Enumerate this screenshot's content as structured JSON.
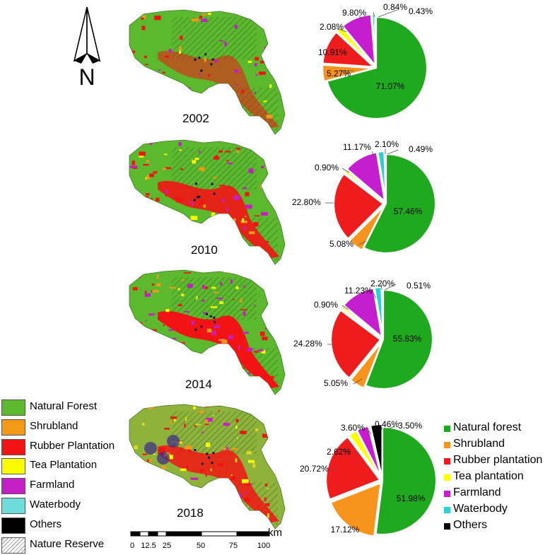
{
  "north_arrow": {
    "letter": "N"
  },
  "years": [
    "2002",
    "2010",
    "2014",
    "2018"
  ],
  "legend_left": [
    {
      "label": "Natural Forest",
      "color": "#5cb82d"
    },
    {
      "label": "Shrubland",
      "color": "#f29a18"
    },
    {
      "label": "Rubber Plantation",
      "color": "#f21414"
    },
    {
      "label": "Tea Plantation",
      "color": "#fafa00"
    },
    {
      "label": "Farmland",
      "color": "#c61ec6"
    },
    {
      "label": "Waterbody",
      "color": "#6fdcdc"
    },
    {
      "label": "Others",
      "color": "#000000"
    },
    {
      "label": "Nature Reserve",
      "color": "hatch"
    }
  ],
  "legend_right": [
    {
      "label": "Natural forest",
      "color": "#1fa91f"
    },
    {
      "label": "Shrubland",
      "color": "#f7941d"
    },
    {
      "label": "Rubber plantation",
      "color": "#ee1c1c"
    },
    {
      "label": "Tea plantation",
      "color": "#ffff00"
    },
    {
      "label": "Farmland",
      "color": "#c51ecf"
    },
    {
      "label": "Waterbody",
      "color": "#2dd0d0"
    },
    {
      "label": "Others",
      "color": "#000000"
    }
  ],
  "scale_bar": {
    "unit": "km",
    "ticks": [
      "0",
      "12.5",
      "25",
      "50",
      "75",
      "100"
    ]
  },
  "chart_data": [
    {
      "type": "pie",
      "title": "2002",
      "categories": [
        "Natural forest",
        "Shrubland",
        "Rubber plantation",
        "Tea plantation",
        "Farmland",
        "Waterbody",
        "Others"
      ],
      "values": [
        71.07,
        5.27,
        10.91,
        2.08,
        9.8,
        0.84,
        0.43
      ],
      "labels": [
        "71.07%",
        "5.27%",
        "10.91%",
        "2.08%",
        "9.80%",
        "0.84%",
        "0.43%"
      ]
    },
    {
      "type": "pie",
      "title": "2010",
      "categories": [
        "Natural forest",
        "Shrubland",
        "Rubber plantation",
        "Tea plantation",
        "Farmland",
        "Waterbody",
        "Others"
      ],
      "values": [
        57.46,
        5.08,
        22.8,
        0.9,
        11.17,
        2.1,
        0.49
      ],
      "labels": [
        "57.46%",
        "5.08%",
        "22.80%",
        "0.90%",
        "11.17%",
        "2.10%",
        "0.49%"
      ]
    },
    {
      "type": "pie",
      "title": "2014",
      "categories": [
        "Natural forest",
        "Shrubland",
        "Rubber plantation",
        "Tea plantation",
        "Farmland",
        "Waterbody",
        "Others"
      ],
      "values": [
        55.83,
        5.05,
        24.28,
        0.9,
        11.23,
        2.2,
        0.51
      ],
      "labels": [
        "55.83%",
        "5.05%",
        "24.28%",
        "0.90%",
        "11.23%",
        "2.20%",
        "0.51%"
      ]
    },
    {
      "type": "pie",
      "title": "2018",
      "categories": [
        "Natural forest",
        "Shrubland",
        "Rubber plantation",
        "Tea plantation",
        "Farmland",
        "Waterbody",
        "Others"
      ],
      "values": [
        51.98,
        17.12,
        20.72,
        2.62,
        3.6,
        0.46,
        3.5
      ],
      "labels": [
        "51.98%",
        "17.12%",
        "20.72%",
        "2.62%",
        "3.60%",
        "0.46%",
        "3.50%"
      ]
    }
  ]
}
